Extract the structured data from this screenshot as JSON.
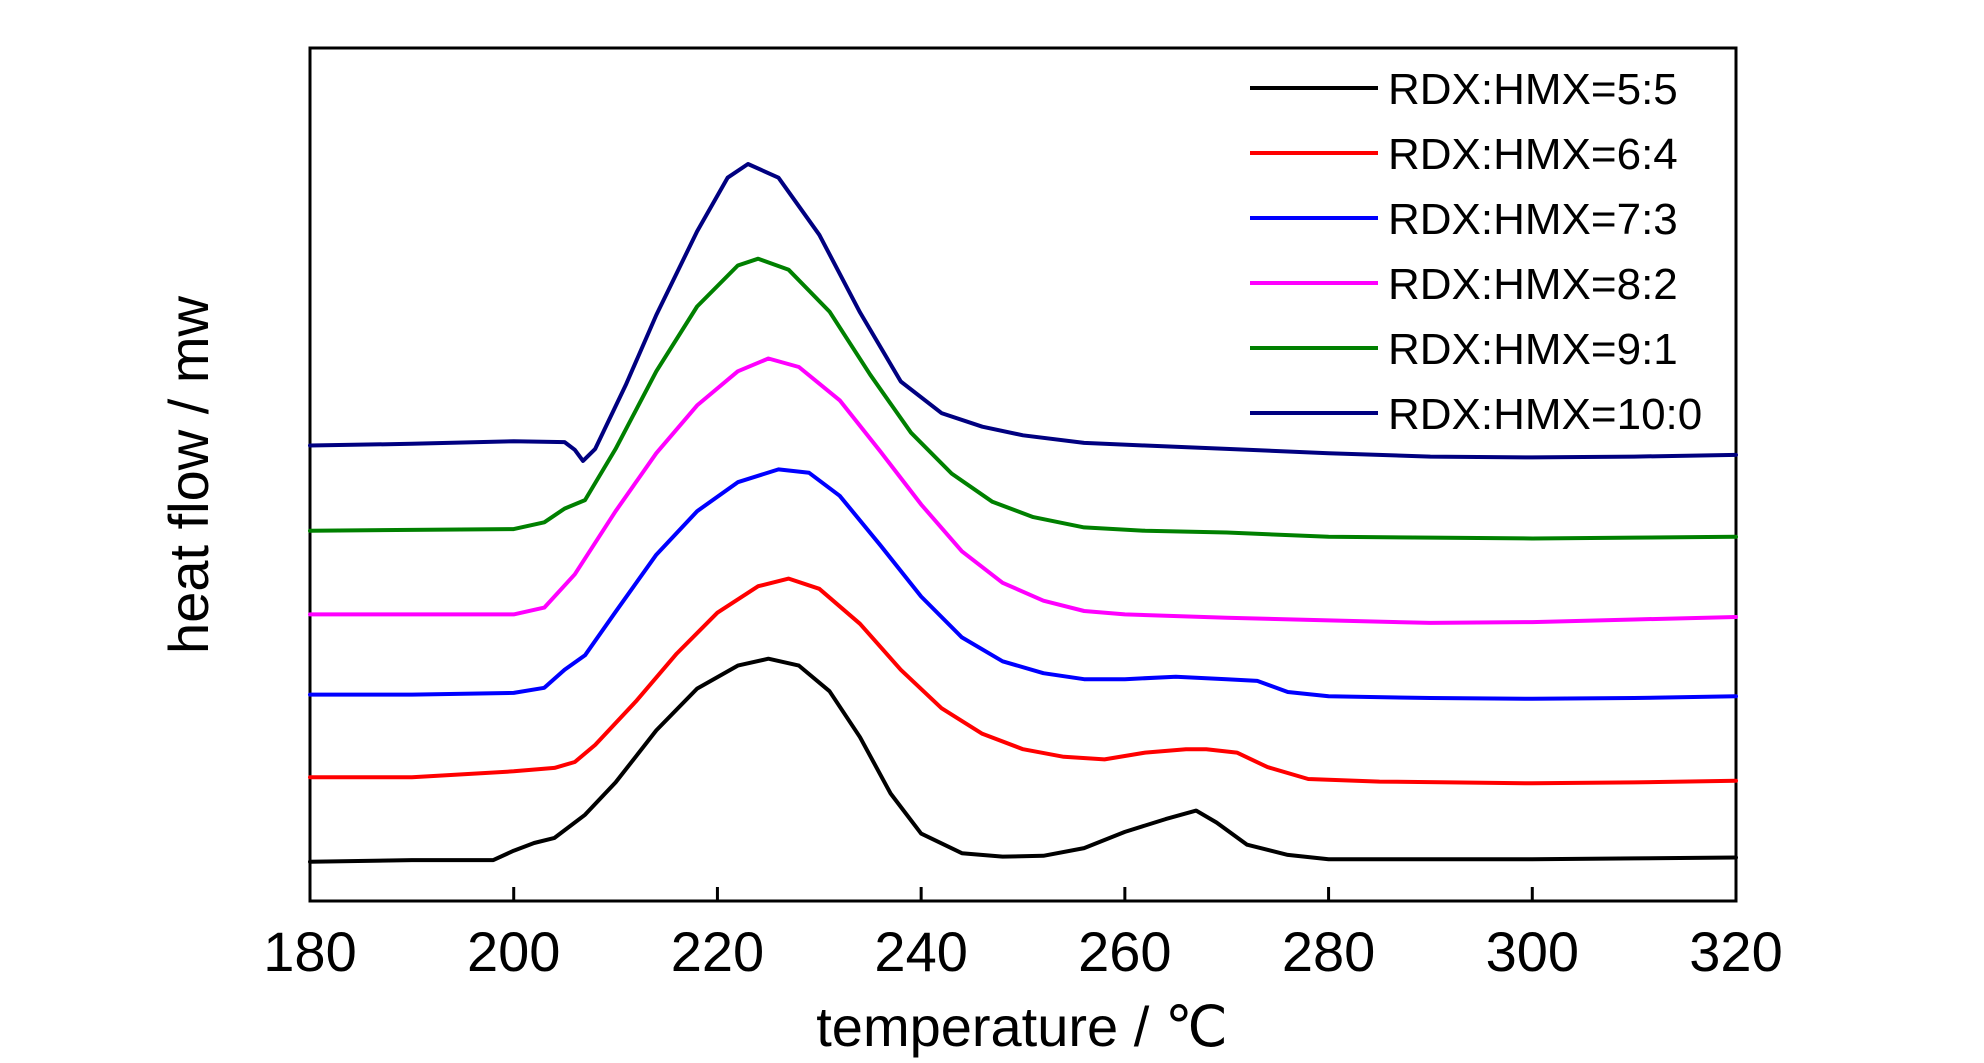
{
  "chart_data": {
    "type": "line",
    "xlabel": "temperature / ℃",
    "ylabel": "heat flow / mw",
    "xlim": [
      180,
      320
    ],
    "ylim": [
      0,
      100
    ],
    "x_ticks": [
      "180",
      "200",
      "220",
      "240",
      "260",
      "280",
      "300",
      "320"
    ],
    "y_ticks_labeled": false,
    "grid": false,
    "legend_position": "top-right",
    "series": [
      {
        "name": "RDX:HMX=5:5",
        "color": "#000000",
        "points": [
          [
            180,
            4.6
          ],
          [
            190,
            4.8
          ],
          [
            198,
            4.8
          ],
          [
            200,
            5.9
          ],
          [
            202,
            6.8
          ],
          [
            204,
            7.4
          ],
          [
            207,
            10.1
          ],
          [
            210,
            13.9
          ],
          [
            214,
            20.0
          ],
          [
            218,
            24.9
          ],
          [
            222,
            27.6
          ],
          [
            225,
            28.4
          ],
          [
            228,
            27.6
          ],
          [
            231,
            24.6
          ],
          [
            234,
            19.2
          ],
          [
            237,
            12.6
          ],
          [
            240,
            7.9
          ],
          [
            244,
            5.6
          ],
          [
            248,
            5.2
          ],
          [
            252,
            5.3
          ],
          [
            256,
            6.2
          ],
          [
            260,
            8.1
          ],
          [
            264,
            9.6
          ],
          [
            267,
            10.6
          ],
          [
            269,
            9.2
          ],
          [
            272,
            6.6
          ],
          [
            276,
            5.4
          ],
          [
            280,
            4.9
          ],
          [
            290,
            4.9
          ],
          [
            300,
            4.9
          ],
          [
            310,
            5.0
          ],
          [
            320,
            5.1
          ]
        ]
      },
      {
        "name": "RDX:HMX=6:4",
        "color": "#ff0000",
        "points": [
          [
            180,
            14.5
          ],
          [
            190,
            14.5
          ],
          [
            200,
            15.2
          ],
          [
            204,
            15.6
          ],
          [
            206,
            16.3
          ],
          [
            208,
            18.3
          ],
          [
            212,
            23.4
          ],
          [
            216,
            29.0
          ],
          [
            220,
            33.8
          ],
          [
            224,
            36.9
          ],
          [
            227,
            37.8
          ],
          [
            230,
            36.6
          ],
          [
            234,
            32.5
          ],
          [
            238,
            27.1
          ],
          [
            242,
            22.6
          ],
          [
            246,
            19.6
          ],
          [
            250,
            17.8
          ],
          [
            254,
            16.9
          ],
          [
            258,
            16.6
          ],
          [
            262,
            17.4
          ],
          [
            266,
            17.8
          ],
          [
            268,
            17.8
          ],
          [
            271,
            17.4
          ],
          [
            274,
            15.7
          ],
          [
            278,
            14.3
          ],
          [
            285,
            14.0
          ],
          [
            300,
            13.8
          ],
          [
            310,
            13.9
          ],
          [
            320,
            14.1
          ]
        ]
      },
      {
        "name": "RDX:HMX=7:3",
        "color": "#0000ff",
        "points": [
          [
            180,
            24.2
          ],
          [
            190,
            24.2
          ],
          [
            200,
            24.4
          ],
          [
            203,
            25.0
          ],
          [
            205,
            27.1
          ],
          [
            207,
            28.8
          ],
          [
            210,
            33.9
          ],
          [
            214,
            40.6
          ],
          [
            218,
            45.7
          ],
          [
            222,
            49.1
          ],
          [
            226,
            50.6
          ],
          [
            229,
            50.2
          ],
          [
            232,
            47.5
          ],
          [
            236,
            41.7
          ],
          [
            240,
            35.7
          ],
          [
            244,
            30.9
          ],
          [
            248,
            28.1
          ],
          [
            252,
            26.7
          ],
          [
            256,
            26.0
          ],
          [
            260,
            26.0
          ],
          [
            265,
            26.3
          ],
          [
            270,
            26.0
          ],
          [
            273,
            25.8
          ],
          [
            276,
            24.5
          ],
          [
            280,
            24.0
          ],
          [
            290,
            23.8
          ],
          [
            300,
            23.7
          ],
          [
            310,
            23.8
          ],
          [
            320,
            24.0
          ]
        ]
      },
      {
        "name": "RDX:HMX=8:2",
        "color": "#ff00ff",
        "points": [
          [
            180,
            33.6
          ],
          [
            190,
            33.6
          ],
          [
            200,
            33.6
          ],
          [
            203,
            34.4
          ],
          [
            206,
            38.3
          ],
          [
            210,
            45.7
          ],
          [
            214,
            52.5
          ],
          [
            218,
            58.1
          ],
          [
            222,
            62.1
          ],
          [
            225,
            63.6
          ],
          [
            228,
            62.6
          ],
          [
            232,
            58.7
          ],
          [
            236,
            52.7
          ],
          [
            240,
            46.5
          ],
          [
            244,
            41.0
          ],
          [
            248,
            37.3
          ],
          [
            252,
            35.2
          ],
          [
            256,
            34.0
          ],
          [
            260,
            33.6
          ],
          [
            270,
            33.2
          ],
          [
            280,
            32.9
          ],
          [
            290,
            32.6
          ],
          [
            300,
            32.7
          ],
          [
            310,
            33.0
          ],
          [
            320,
            33.3
          ]
        ]
      },
      {
        "name": "RDX:HMX=9:1",
        "color": "#008000",
        "points": [
          [
            180,
            43.4
          ],
          [
            190,
            43.5
          ],
          [
            200,
            43.6
          ],
          [
            203,
            44.4
          ],
          [
            205,
            46.0
          ],
          [
            207,
            47.0
          ],
          [
            210,
            53.0
          ],
          [
            214,
            62.1
          ],
          [
            218,
            69.7
          ],
          [
            222,
            74.5
          ],
          [
            224,
            75.3
          ],
          [
            227,
            74.0
          ],
          [
            231,
            69.1
          ],
          [
            235,
            61.7
          ],
          [
            239,
            54.9
          ],
          [
            243,
            50.1
          ],
          [
            247,
            46.8
          ],
          [
            251,
            45.0
          ],
          [
            256,
            43.8
          ],
          [
            262,
            43.4
          ],
          [
            270,
            43.2
          ],
          [
            280,
            42.7
          ],
          [
            290,
            42.6
          ],
          [
            300,
            42.5
          ],
          [
            310,
            42.6
          ],
          [
            320,
            42.7
          ]
        ]
      },
      {
        "name": "RDX:HMX=10:0",
        "color": "#000080",
        "points": [
          [
            180,
            53.4
          ],
          [
            190,
            53.6
          ],
          [
            200,
            53.9
          ],
          [
            205,
            53.8
          ],
          [
            206,
            52.9
          ],
          [
            206.8,
            51.6
          ],
          [
            208,
            53.0
          ],
          [
            211,
            60.5
          ],
          [
            214,
            68.7
          ],
          [
            218,
            78.5
          ],
          [
            221,
            84.8
          ],
          [
            223,
            86.4
          ],
          [
            226,
            84.8
          ],
          [
            230,
            78.1
          ],
          [
            234,
            69.0
          ],
          [
            238,
            60.9
          ],
          [
            242,
            57.2
          ],
          [
            246,
            55.6
          ],
          [
            250,
            54.6
          ],
          [
            256,
            53.7
          ],
          [
            262,
            53.4
          ],
          [
            270,
            53.0
          ],
          [
            280,
            52.5
          ],
          [
            290,
            52.1
          ],
          [
            300,
            52.0
          ],
          [
            310,
            52.1
          ],
          [
            320,
            52.3
          ]
        ]
      }
    ]
  }
}
